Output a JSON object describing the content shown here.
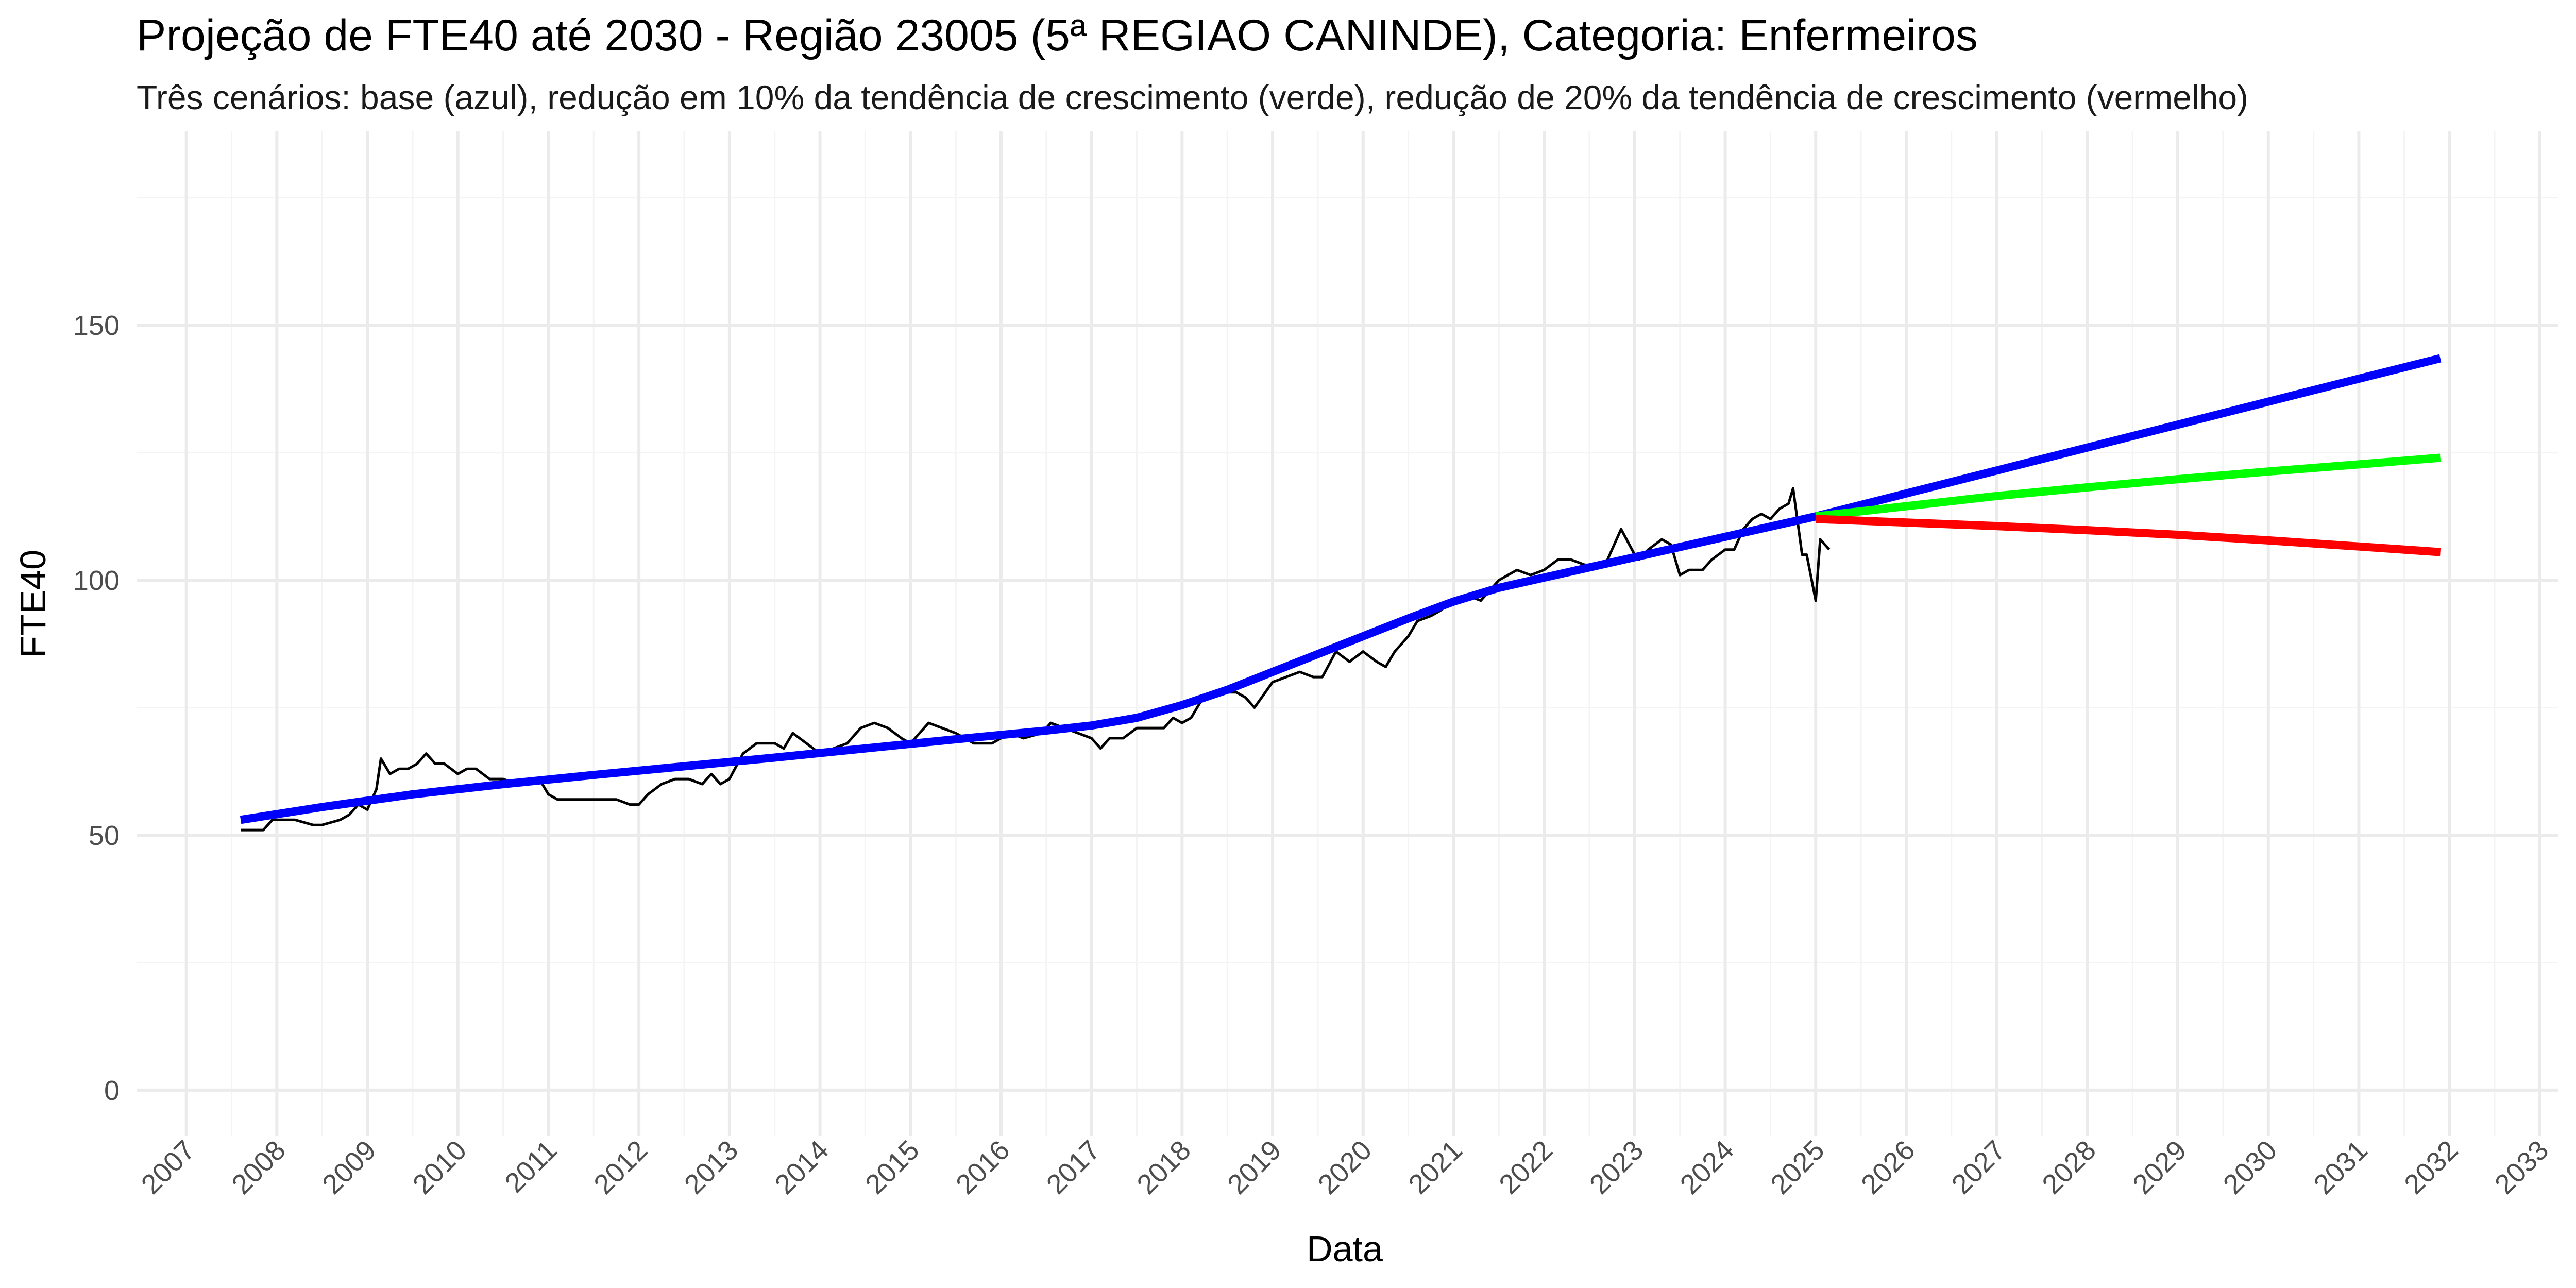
{
  "chart_data": {
    "type": "line",
    "title": "Projeção de FTE40 até 2030 - Região 23005 (5ª REGIAO CANINDE), Categoria: Enfermeiros",
    "subtitle": "Três cenários: base (azul), redução em 10% da tendência de crescimento (verde), redução de 20% da tendência de crescimento (vermelho)",
    "xlabel": "Data",
    "ylabel": "FTE40",
    "xlim": [
      2006.45,
      2033.2
    ],
    "ylim": [
      -9,
      188
    ],
    "x_ticks": [
      2007,
      2008,
      2009,
      2010,
      2011,
      2012,
      2013,
      2014,
      2015,
      2016,
      2017,
      2018,
      2019,
      2020,
      2021,
      2022,
      2023,
      2024,
      2025,
      2026,
      2027,
      2028,
      2029,
      2030,
      2031,
      2032,
      2033
    ],
    "x_tick_labels": [
      "2007",
      "2008",
      "2009",
      "2010",
      "2011",
      "2012",
      "2013",
      "2014",
      "2015",
      "2016",
      "2017",
      "2018",
      "2019",
      "2020",
      "2021",
      "2022",
      "2023",
      "2024",
      "2025",
      "2026",
      "2027",
      "2028",
      "2029",
      "2030",
      "2031",
      "2032",
      "2033"
    ],
    "y_ticks": [
      0,
      50,
      100,
      150
    ],
    "y_tick_labels": [
      "0",
      "50",
      "100",
      "150"
    ],
    "y_minor_ticks": [
      25,
      75,
      125,
      175
    ],
    "grid": true,
    "legend": "none",
    "series": [
      {
        "color": "#000000",
        "width": 5,
        "x": [
          2007.6,
          2007.85,
          2007.95,
          2008.2,
          2008.4,
          2008.5,
          2008.7,
          2008.8,
          2008.9,
          2009.0,
          2009.1,
          2009.15,
          2009.25,
          2009.35,
          2009.45,
          2009.55,
          2009.65,
          2009.75,
          2009.85,
          2010.0,
          2010.1,
          2010.2,
          2010.35,
          2010.5,
          2010.65,
          2010.8,
          2010.9,
          2011.0,
          2011.1,
          2011.3,
          2011.5,
          2011.75,
          2011.9,
          2012.0,
          2012.1,
          2012.25,
          2012.4,
          2012.55,
          2012.7,
          2012.8,
          2012.9,
          2013.0,
          2013.15,
          2013.3,
          2013.5,
          2013.6,
          2013.7,
          2013.85,
          2014.0,
          2014.15,
          2014.3,
          2014.45,
          2014.6,
          2014.75,
          2014.9,
          2015.0,
          2015.1,
          2015.2,
          2015.35,
          2015.5,
          2015.7,
          2015.9,
          2016.1,
          2016.25,
          2016.45,
          2016.55,
          2016.7,
          2016.85,
          2017.0,
          2017.1,
          2017.2,
          2017.35,
          2017.5,
          2017.65,
          2017.8,
          2017.9,
          2018.0,
          2018.1,
          2018.2,
          2018.35,
          2018.5,
          2018.6,
          2018.7,
          2018.8,
          2019.0,
          2019.15,
          2019.3,
          2019.45,
          2019.55,
          2019.7,
          2019.85,
          2020.0,
          2020.15,
          2020.25,
          2020.35,
          2020.5,
          2020.6,
          2020.75,
          2020.85,
          2021.0,
          2021.15,
          2021.3,
          2021.4,
          2021.5,
          2021.6,
          2021.7,
          2021.85,
          2022.0,
          2022.15,
          2022.3,
          2022.45,
          2022.6,
          2022.7,
          2022.85,
          2023.0,
          2023.05,
          2023.15,
          2023.3,
          2023.4,
          2023.5,
          2023.6,
          2023.75,
          2023.85,
          2024.0,
          2024.1,
          2024.2,
          2024.3,
          2024.4,
          2024.5,
          2024.6,
          2024.7,
          2024.75,
          2024.85,
          2024.9,
          2025.0,
          2025.05,
          2025.15
        ],
        "values": [
          51,
          51,
          53,
          53,
          52,
          52,
          53,
          54,
          56,
          55,
          59,
          65,
          62,
          63,
          63,
          64,
          66,
          64,
          64,
          62,
          63,
          63,
          61,
          61,
          60,
          60,
          61,
          58,
          57,
          57,
          57,
          57,
          56,
          56,
          58,
          60,
          61,
          61,
          60,
          62,
          60,
          61,
          66,
          68,
          68,
          67,
          70,
          68,
          66,
          67,
          68,
          71,
          72,
          71,
          69,
          68,
          70,
          72,
          71,
          70,
          68,
          68,
          70,
          69,
          70,
          72,
          71,
          70,
          69,
          67,
          69,
          69,
          71,
          71,
          71,
          73,
          72,
          73,
          76,
          78,
          78,
          78,
          77,
          75,
          80,
          81,
          82,
          81,
          81,
          86,
          84,
          86,
          84,
          83,
          86,
          89,
          92,
          93,
          94,
          96,
          97,
          96,
          98,
          100,
          101,
          102,
          101,
          102,
          104,
          104,
          103,
          103,
          104,
          110,
          105,
          104,
          106,
          108,
          107,
          101,
          102,
          102,
          104,
          106,
          106,
          110,
          112,
          113,
          112,
          114,
          115,
          118,
          105,
          105,
          96,
          108,
          106
        ]
      },
      {
        "color": "#0000ff",
        "width": 16,
        "x": [
          2007.6,
          2008.5,
          2009.5,
          2010.5,
          2011.5,
          2012.5,
          2013.5,
          2014.5,
          2015.5,
          2016.5,
          2017.0,
          2017.5,
          2018.0,
          2018.5,
          2019.0,
          2019.5,
          2020.0,
          2020.5,
          2021.0,
          2021.5,
          2022.0,
          2022.5,
          2023.0,
          2023.5,
          2024.0,
          2024.5,
          2025.0,
          2026.0,
          2027.0,
          2028.0,
          2029.0,
          2030.0,
          2031.0,
          2031.9
        ],
        "values": [
          53,
          55.5,
          58,
          60,
          61.8,
          63.5,
          65.2,
          67,
          68.8,
          70.5,
          71.5,
          73,
          75.5,
          78.5,
          82,
          85.5,
          89,
          92.5,
          95.8,
          98.5,
          100.5,
          102.5,
          104.5,
          106.5,
          108.5,
          110.5,
          112.5,
          117,
          121.5,
          126,
          130.5,
          135,
          139.5,
          143.5
        ]
      },
      {
        "color": "#00ff00",
        "width": 16,
        "x": [
          2025.0,
          2026.0,
          2027.0,
          2028.0,
          2029.0,
          2030.0,
          2031.0,
          2031.9
        ],
        "values": [
          112.5,
          114.5,
          116.5,
          118.2,
          119.8,
          121.3,
          122.7,
          124
        ]
      },
      {
        "color": "#ff0000",
        "width": 16,
        "x": [
          2025.0,
          2026.0,
          2027.0,
          2028.0,
          2029.0,
          2030.0,
          2031.0,
          2031.9
        ],
        "values": [
          112,
          111.3,
          110.6,
          109.8,
          108.9,
          107.8,
          106.6,
          105.5
        ]
      }
    ]
  }
}
